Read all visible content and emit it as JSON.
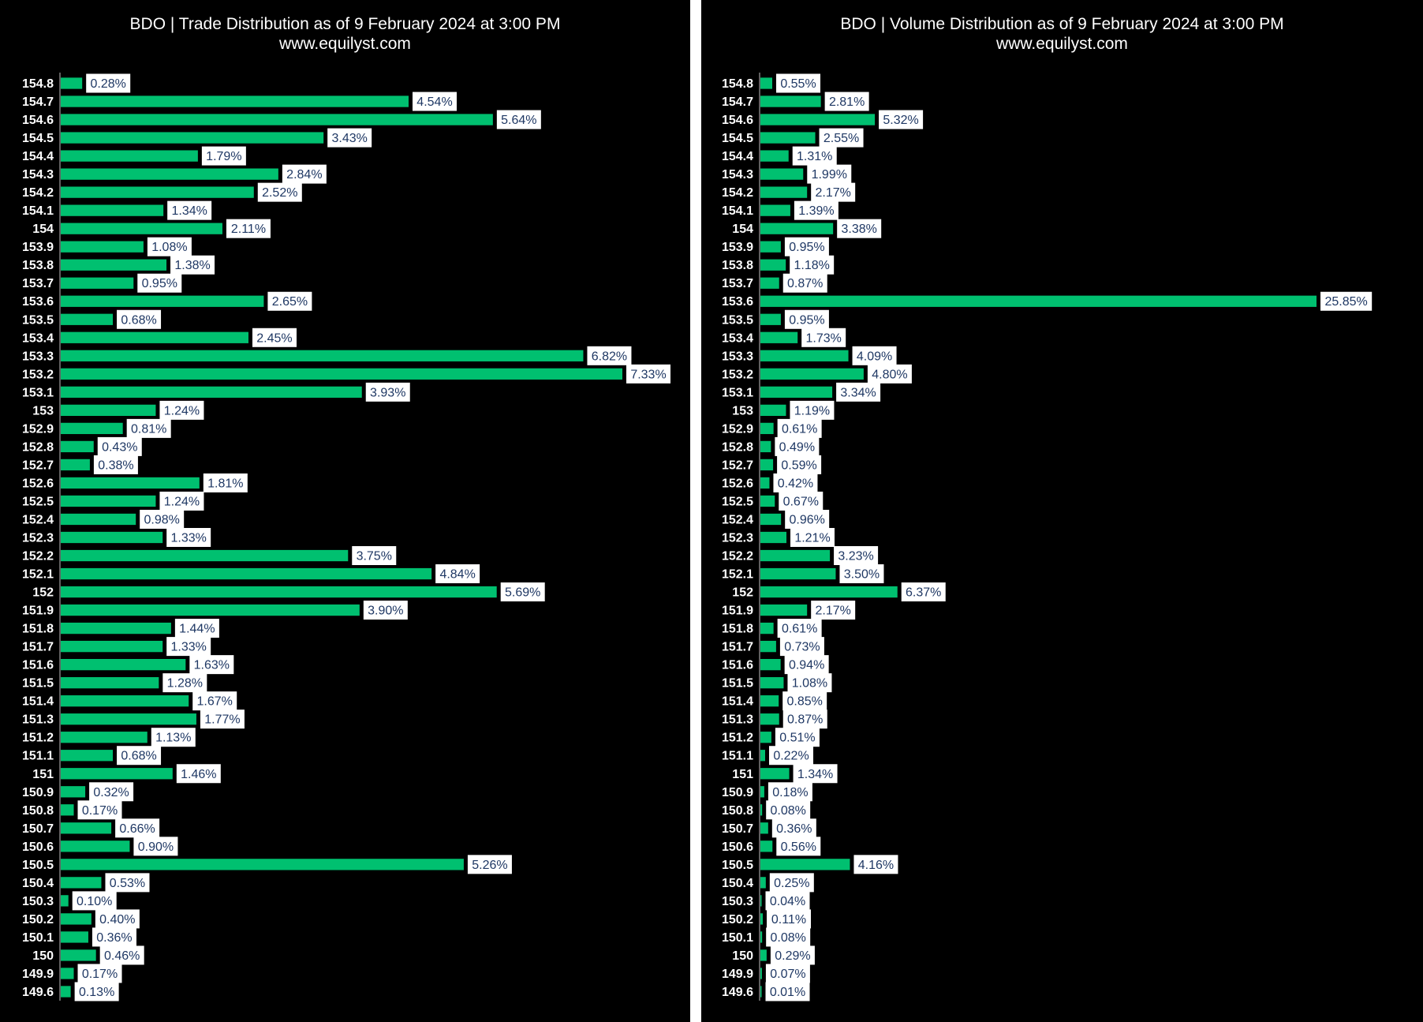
{
  "colors": {
    "background": "#000000",
    "bar": "#00c070",
    "label_box": "#ffffff",
    "label_text": "#1f3864",
    "text": "#ffffff"
  },
  "chart_data": [
    {
      "type": "bar",
      "orientation": "horizontal",
      "title": "BDO | Trade Distribution as of 9 February 2024 at 3:00 PM",
      "subtitle": "www.equilyst.com",
      "value_unit": "%",
      "categories": [
        "154.8",
        "154.7",
        "154.6",
        "154.5",
        "154.4",
        "154.3",
        "154.2",
        "154.1",
        "154",
        "153.9",
        "153.8",
        "153.7",
        "153.6",
        "153.5",
        "153.4",
        "153.3",
        "153.2",
        "153.1",
        "153",
        "152.9",
        "152.8",
        "152.7",
        "152.6",
        "152.5",
        "152.4",
        "152.3",
        "152.2",
        "152.1",
        "152",
        "151.9",
        "151.8",
        "151.7",
        "151.6",
        "151.5",
        "151.4",
        "151.3",
        "151.2",
        "151.1",
        "151",
        "150.9",
        "150.8",
        "150.7",
        "150.6",
        "150.5",
        "150.4",
        "150.3",
        "150.2",
        "150.1",
        "150",
        "149.9",
        "149.6"
      ],
      "values": [
        0.28,
        4.54,
        5.64,
        3.43,
        1.79,
        2.84,
        2.52,
        1.34,
        2.11,
        1.08,
        1.38,
        0.95,
        2.65,
        0.68,
        2.45,
        6.82,
        7.33,
        3.93,
        1.24,
        0.81,
        0.43,
        0.38,
        1.81,
        1.24,
        0.98,
        1.33,
        3.75,
        4.84,
        5.69,
        3.9,
        1.44,
        1.33,
        1.63,
        1.28,
        1.67,
        1.77,
        1.13,
        0.68,
        1.46,
        0.32,
        0.17,
        0.66,
        0.9,
        5.26,
        0.53,
        0.1,
        0.4,
        0.36,
        0.46,
        0.17,
        0.13
      ],
      "data_labels": [
        "0.28%",
        "4.54%",
        "5.64%",
        "3.43%",
        "1.79%",
        "2.84%",
        "2.52%",
        "1.34%",
        "2.11%",
        "1.08%",
        "1.38%",
        "0.95%",
        "2.65%",
        "0.68%",
        "2.45%",
        "6.82%",
        "7.33%",
        "3.93%",
        "1.24%",
        "0.81%",
        "0.43%",
        "0.38%",
        "1.81%",
        "1.24%",
        "0.98%",
        "1.33%",
        "3.75%",
        "4.84%",
        "5.69%",
        "3.90%",
        "1.44%",
        "1.33%",
        "1.63%",
        "1.28%",
        "1.67%",
        "1.77%",
        "1.13%",
        "0.68%",
        "1.46%",
        "0.32%",
        "0.17%",
        "0.66%",
        "0.90%",
        "5.26%",
        "0.53%",
        "0.10%",
        "0.40%",
        "0.36%",
        "0.46%",
        "0.17%",
        "0.13%"
      ],
      "xlim": [
        0,
        7.33
      ],
      "grid": false
    },
    {
      "type": "bar",
      "orientation": "horizontal",
      "title": "BDO | Volume Distribution as of 9 February 2024 at 3:00 PM",
      "subtitle": "www.equilyst.com",
      "value_unit": "%",
      "categories": [
        "154.8",
        "154.7",
        "154.6",
        "154.5",
        "154.4",
        "154.3",
        "154.2",
        "154.1",
        "154",
        "153.9",
        "153.8",
        "153.7",
        "153.6",
        "153.5",
        "153.4",
        "153.3",
        "153.2",
        "153.1",
        "153",
        "152.9",
        "152.8",
        "152.7",
        "152.6",
        "152.5",
        "152.4",
        "152.3",
        "152.2",
        "152.1",
        "152",
        "151.9",
        "151.8",
        "151.7",
        "151.6",
        "151.5",
        "151.4",
        "151.3",
        "151.2",
        "151.1",
        "151",
        "150.9",
        "150.8",
        "150.7",
        "150.6",
        "150.5",
        "150.4",
        "150.3",
        "150.2",
        "150.1",
        "150",
        "149.9",
        "149.6"
      ],
      "values": [
        0.55,
        2.81,
        5.32,
        2.55,
        1.31,
        1.99,
        2.17,
        1.39,
        3.38,
        0.95,
        1.18,
        0.87,
        25.85,
        0.95,
        1.73,
        4.09,
        4.8,
        3.34,
        1.19,
        0.61,
        0.49,
        0.59,
        0.42,
        0.67,
        0.96,
        1.21,
        3.23,
        3.5,
        6.37,
        2.17,
        0.61,
        0.73,
        0.94,
        1.08,
        0.85,
        0.87,
        0.51,
        0.22,
        1.34,
        0.18,
        0.08,
        0.36,
        0.56,
        4.16,
        0.25,
        0.04,
        0.11,
        0.08,
        0.29,
        0.07,
        0.01
      ],
      "data_labels": [
        "0.55%",
        "2.81%",
        "5.32%",
        "2.55%",
        "1.31%",
        "1.99%",
        "2.17%",
        "1.39%",
        "3.38%",
        "0.95%",
        "1.18%",
        "0.87%",
        "25.85%",
        "0.95%",
        "1.73%",
        "4.09%",
        "4.80%",
        "3.34%",
        "1.19%",
        "0.61%",
        "0.49%",
        "0.59%",
        "0.42%",
        "0.67%",
        "0.96%",
        "1.21%",
        "3.23%",
        "3.50%",
        "6.37%",
        "2.17%",
        "0.61%",
        "0.73%",
        "0.94%",
        "1.08%",
        "0.85%",
        "0.87%",
        "0.51%",
        "0.22%",
        "1.34%",
        "0.18%",
        "0.08%",
        "0.36%",
        "0.56%",
        "4.16%",
        "0.25%",
        "0.04%",
        "0.11%",
        "0.08%",
        "0.29%",
        "0.07%",
        "0.01%"
      ],
      "xlim": [
        0,
        25.85
      ],
      "grid": false
    }
  ]
}
